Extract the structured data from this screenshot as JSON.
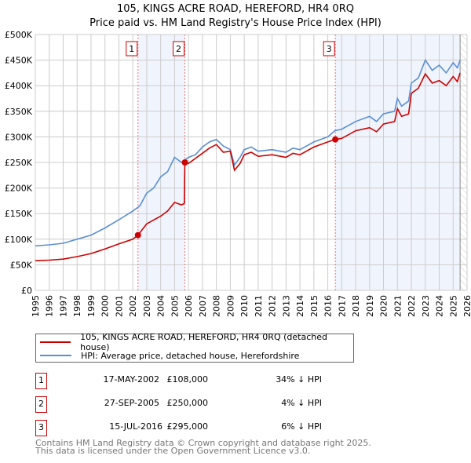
{
  "chart_data": {
    "type": "line",
    "title": "105, KINGS ACRE ROAD, HEREFORD, HR4 0RQ",
    "subtitle": "Price paid vs. HM Land Registry's House Price Index (HPI)",
    "xlim": [
      1995,
      2026
    ],
    "ylim": [
      0,
      500000
    ],
    "x_ticks": [
      "1995",
      "1996",
      "1997",
      "1998",
      "1999",
      "2000",
      "2001",
      "2002",
      "2003",
      "2004",
      "2005",
      "2006",
      "2007",
      "2008",
      "2009",
      "2010",
      "2011",
      "2012",
      "2013",
      "2014",
      "2015",
      "2016",
      "2017",
      "2018",
      "2019",
      "2020",
      "2021",
      "2022",
      "2023",
      "2024",
      "2025",
      "2026"
    ],
    "y_ticks": [
      {
        "v": 0,
        "label": "£0"
      },
      {
        "v": 50000,
        "label": "£50K"
      },
      {
        "v": 100000,
        "label": "£100K"
      },
      {
        "v": 150000,
        "label": "£150K"
      },
      {
        "v": 200000,
        "label": "£200K"
      },
      {
        "v": 250000,
        "label": "£250K"
      },
      {
        "v": 300000,
        "label": "£300K"
      },
      {
        "v": 350000,
        "label": "£350K"
      },
      {
        "v": 400000,
        "label": "£400K"
      },
      {
        "v": 450000,
        "label": "£450K"
      },
      {
        "v": 500000,
        "label": "£500K"
      }
    ],
    "grid": true,
    "series": [
      {
        "name": "105, KINGS ACRE ROAD, HEREFORD, HR4 0RQ (detached house)",
        "color": "#cc0000",
        "x": [
          1995,
          1996,
          1997,
          1998,
          1999,
          2000,
          2001,
          2002,
          2002.37,
          2003,
          2004,
          2004.5,
          2005,
          2005.5,
          2005.7,
          2005.74,
          2006,
          2007,
          2007.5,
          2008,
          2008.5,
          2009,
          2009.3,
          2009.7,
          2010,
          2010.5,
          2011,
          2012,
          2013,
          2013.5,
          2014,
          2015,
          2016,
          2016.54,
          2017,
          2018,
          2019,
          2019.5,
          2020,
          2020.8,
          2021,
          2021.3,
          2021.8,
          2022,
          2022.5,
          2023,
          2023.5,
          2024,
          2024.5,
          2025,
          2025.3,
          2025.5
        ],
        "y": [
          58,
          59,
          61,
          66,
          72,
          81,
          91,
          100,
          108,
          130,
          145,
          155,
          172,
          167,
          170,
          250,
          248,
          268,
          278,
          285,
          270,
          272,
          235,
          248,
          265,
          270,
          262,
          265,
          260,
          268,
          265,
          280,
          290,
          295,
          297,
          312,
          318,
          310,
          325,
          330,
          355,
          340,
          345,
          385,
          395,
          423,
          405,
          410,
          400,
          418,
          408,
          425
        ]
      },
      {
        "name": "HPI: Average price, detached house, Herefordshire",
        "color": "#5b8fd4",
        "x": [
          1995,
          1996,
          1997,
          1998,
          1999,
          2000,
          2001,
          2002,
          2002.5,
          2003,
          2003.5,
          2004,
          2004.5,
          2005,
          2005.5,
          2006,
          2006.5,
          2007,
          2007.5,
          2008,
          2008.5,
          2009,
          2009.3,
          2009.7,
          2010,
          2010.5,
          2011,
          2012,
          2013,
          2013.5,
          2014,
          2015,
          2016,
          2016.5,
          2017,
          2018,
          2019,
          2019.5,
          2020,
          2020.8,
          2021,
          2021.3,
          2021.8,
          2022,
          2022.5,
          2023,
          2023.5,
          2024,
          2024.5,
          2025,
          2025.3,
          2025.5
        ],
        "y": [
          87,
          89,
          92,
          100,
          108,
          122,
          138,
          155,
          165,
          190,
          200,
          222,
          232,
          260,
          250,
          260,
          265,
          280,
          290,
          295,
          282,
          275,
          245,
          260,
          275,
          280,
          272,
          275,
          270,
          278,
          275,
          290,
          300,
          312,
          315,
          330,
          340,
          330,
          345,
          350,
          375,
          360,
          370,
          405,
          415,
          450,
          430,
          440,
          425,
          445,
          435,
          450
        ]
      }
    ],
    "y_units": "£K",
    "sales": [
      {
        "n": "1",
        "x": 2002.37,
        "date": "17-MAY-2002",
        "price_value": 108000,
        "price": "£108,000",
        "hpi": "34% ↓ HPI"
      },
      {
        "n": "2",
        "x": 2005.74,
        "date": "27-SEP-2005",
        "price_value": 250000,
        "price": "£250,000",
        "hpi": "4% ↓ HPI"
      },
      {
        "n": "3",
        "x": 2016.54,
        "date": "15-JUL-2016",
        "price_value": 295000,
        "price": "£295,000",
        "hpi": "6% ↓ HPI"
      }
    ],
    "data_end": 2025.5,
    "legend_position": "below"
  },
  "footer": {
    "line1": "Contains HM Land Registry data © Crown copyright and database right 2025.",
    "line2": "This data is licensed under the Open Government Licence v3.0."
  }
}
